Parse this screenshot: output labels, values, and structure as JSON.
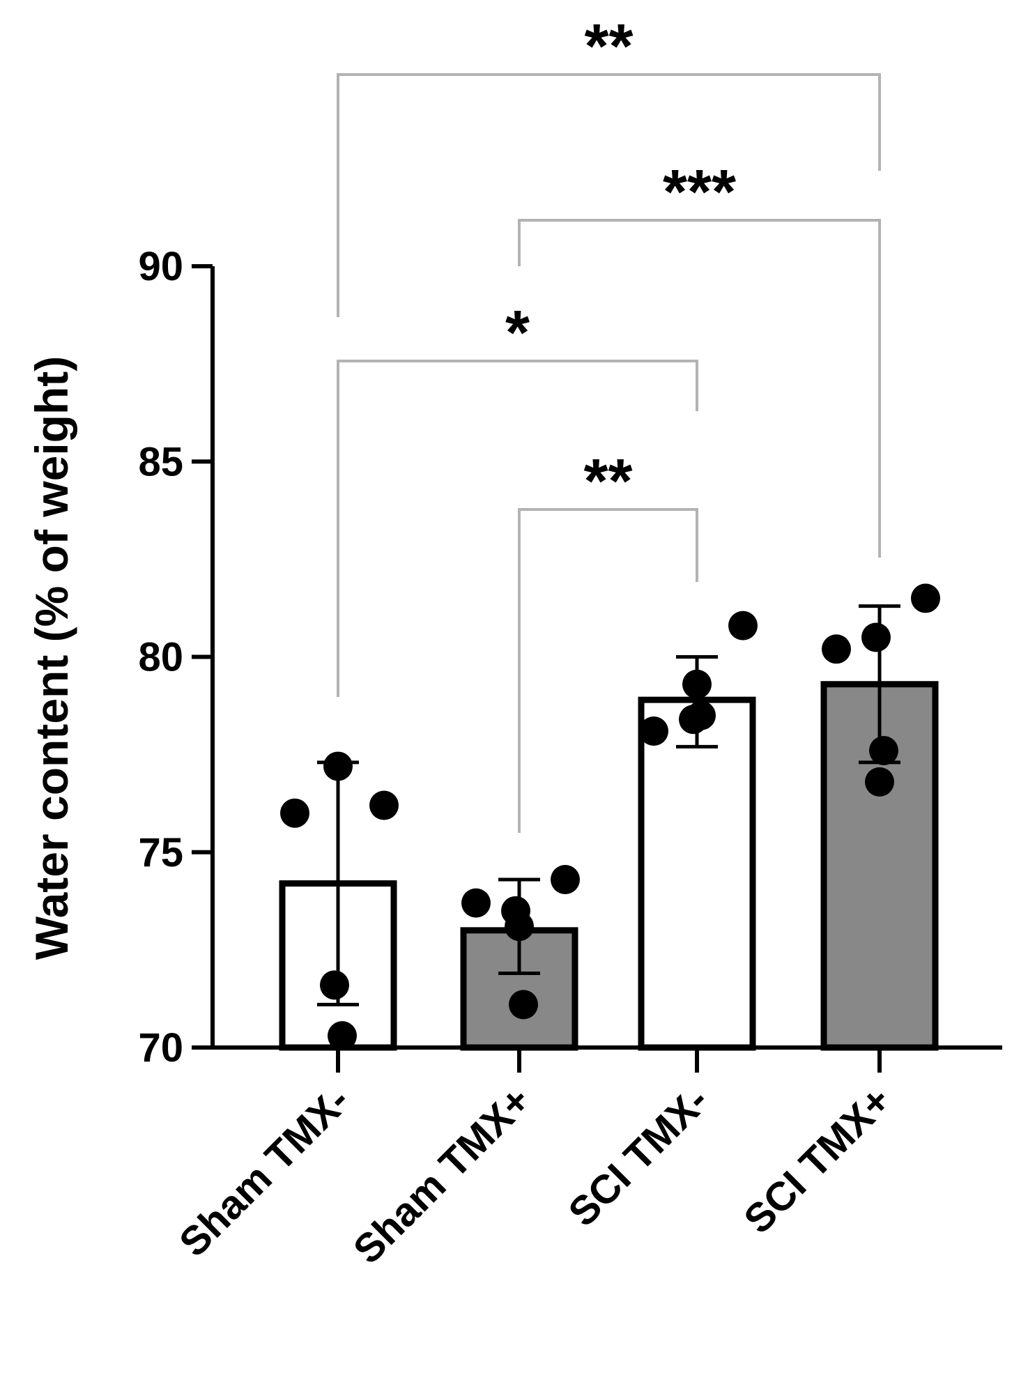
{
  "chart_data": {
    "type": "bar",
    "ylabel": "Water content (% of weight)",
    "xlabel": "",
    "ylim": [
      70,
      90
    ],
    "yticks": [
      70,
      75,
      80,
      85,
      90
    ],
    "categories": [
      "Sham TMX-",
      "Sham TMX+",
      "SCI TMX-",
      "SCI TMX+"
    ],
    "bars": [
      {
        "category": "Sham TMX-",
        "mean": 74.2,
        "sd_low": 71.1,
        "sd_high": 77.3,
        "fill": "#ffffff",
        "points": [
          76.0,
          77.2,
          76.2,
          71.6,
          70.3
        ]
      },
      {
        "category": "Sham TMX+",
        "mean": 73.0,
        "sd_low": 71.9,
        "sd_high": 74.3,
        "fill": "#888888",
        "points": [
          73.7,
          73.1,
          74.3,
          73.5,
          71.1
        ]
      },
      {
        "category": "SCI TMX-",
        "mean": 78.9,
        "sd_low": 77.7,
        "sd_high": 80.0,
        "fill": "#ffffff",
        "points": [
          78.1,
          79.3,
          80.8,
          78.4,
          78.5
        ]
      },
      {
        "category": "SCI TMX+",
        "mean": 79.3,
        "sd_low": 77.3,
        "sd_high": 81.3,
        "fill": "#888888",
        "points": [
          80.2,
          76.8,
          81.5,
          80.5,
          77.6
        ]
      }
    ],
    "significance": [
      {
        "from": 0,
        "to": 3,
        "label": "**"
      },
      {
        "from": 1,
        "to": 3,
        "label": "***"
      },
      {
        "from": 0,
        "to": 2,
        "label": "*"
      },
      {
        "from": 1,
        "to": 2,
        "label": "**"
      }
    ],
    "colors": {
      "axis": "#000000",
      "bracket": "#b3b3b3",
      "bar_dark": "#888888",
      "bar_light": "#ffffff",
      "point": "#000000"
    }
  }
}
